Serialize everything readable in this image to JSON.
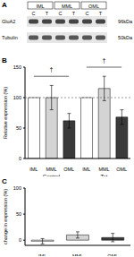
{
  "blot": {
    "panel": "A",
    "regions": [
      "IML",
      "MML",
      "OML"
    ],
    "conditions": [
      "C",
      "T"
    ],
    "rows": [
      {
        "protein": "GluA2",
        "size": "96kDa"
      },
      {
        "protein": "Tubulin",
        "size": "50kDa"
      }
    ]
  },
  "chart_data": [
    {
      "panel": "B",
      "type": "bar",
      "y_label": "Relative expression (%)",
      "categories": [
        "IML",
        "MML",
        "OML",
        "IML",
        "MML",
        "OML"
      ],
      "values": [
        100,
        100,
        62,
        100,
        115,
        68
      ],
      "errors": [
        0,
        20,
        12,
        0,
        20,
        12
      ],
      "colors": [
        "#ffffff",
        "#d4d4d4",
        "#3a3a3a",
        "#ffffff",
        "#d4d4d4",
        "#3a3a3a"
      ],
      "group_labels": [
        "Control",
        "Tet"
      ],
      "group_annotations": [
        "†",
        "†"
      ],
      "reference_line": 100,
      "ylim": [
        0,
        150
      ],
      "yticks": [
        0,
        50,
        100,
        150
      ]
    },
    {
      "panel": "C",
      "type": "bar",
      "y_label": "change in expression (%)",
      "categories": [
        "IML",
        "MML",
        "OML"
      ],
      "values": [
        -2,
        10,
        5
      ],
      "errors": [
        5,
        6,
        8
      ],
      "colors": [
        "#ffffff",
        "#d4d4d4",
        "#3a3a3a"
      ],
      "ylim": [
        -10,
        100
      ],
      "yticks": [
        0,
        50,
        100
      ]
    }
  ]
}
